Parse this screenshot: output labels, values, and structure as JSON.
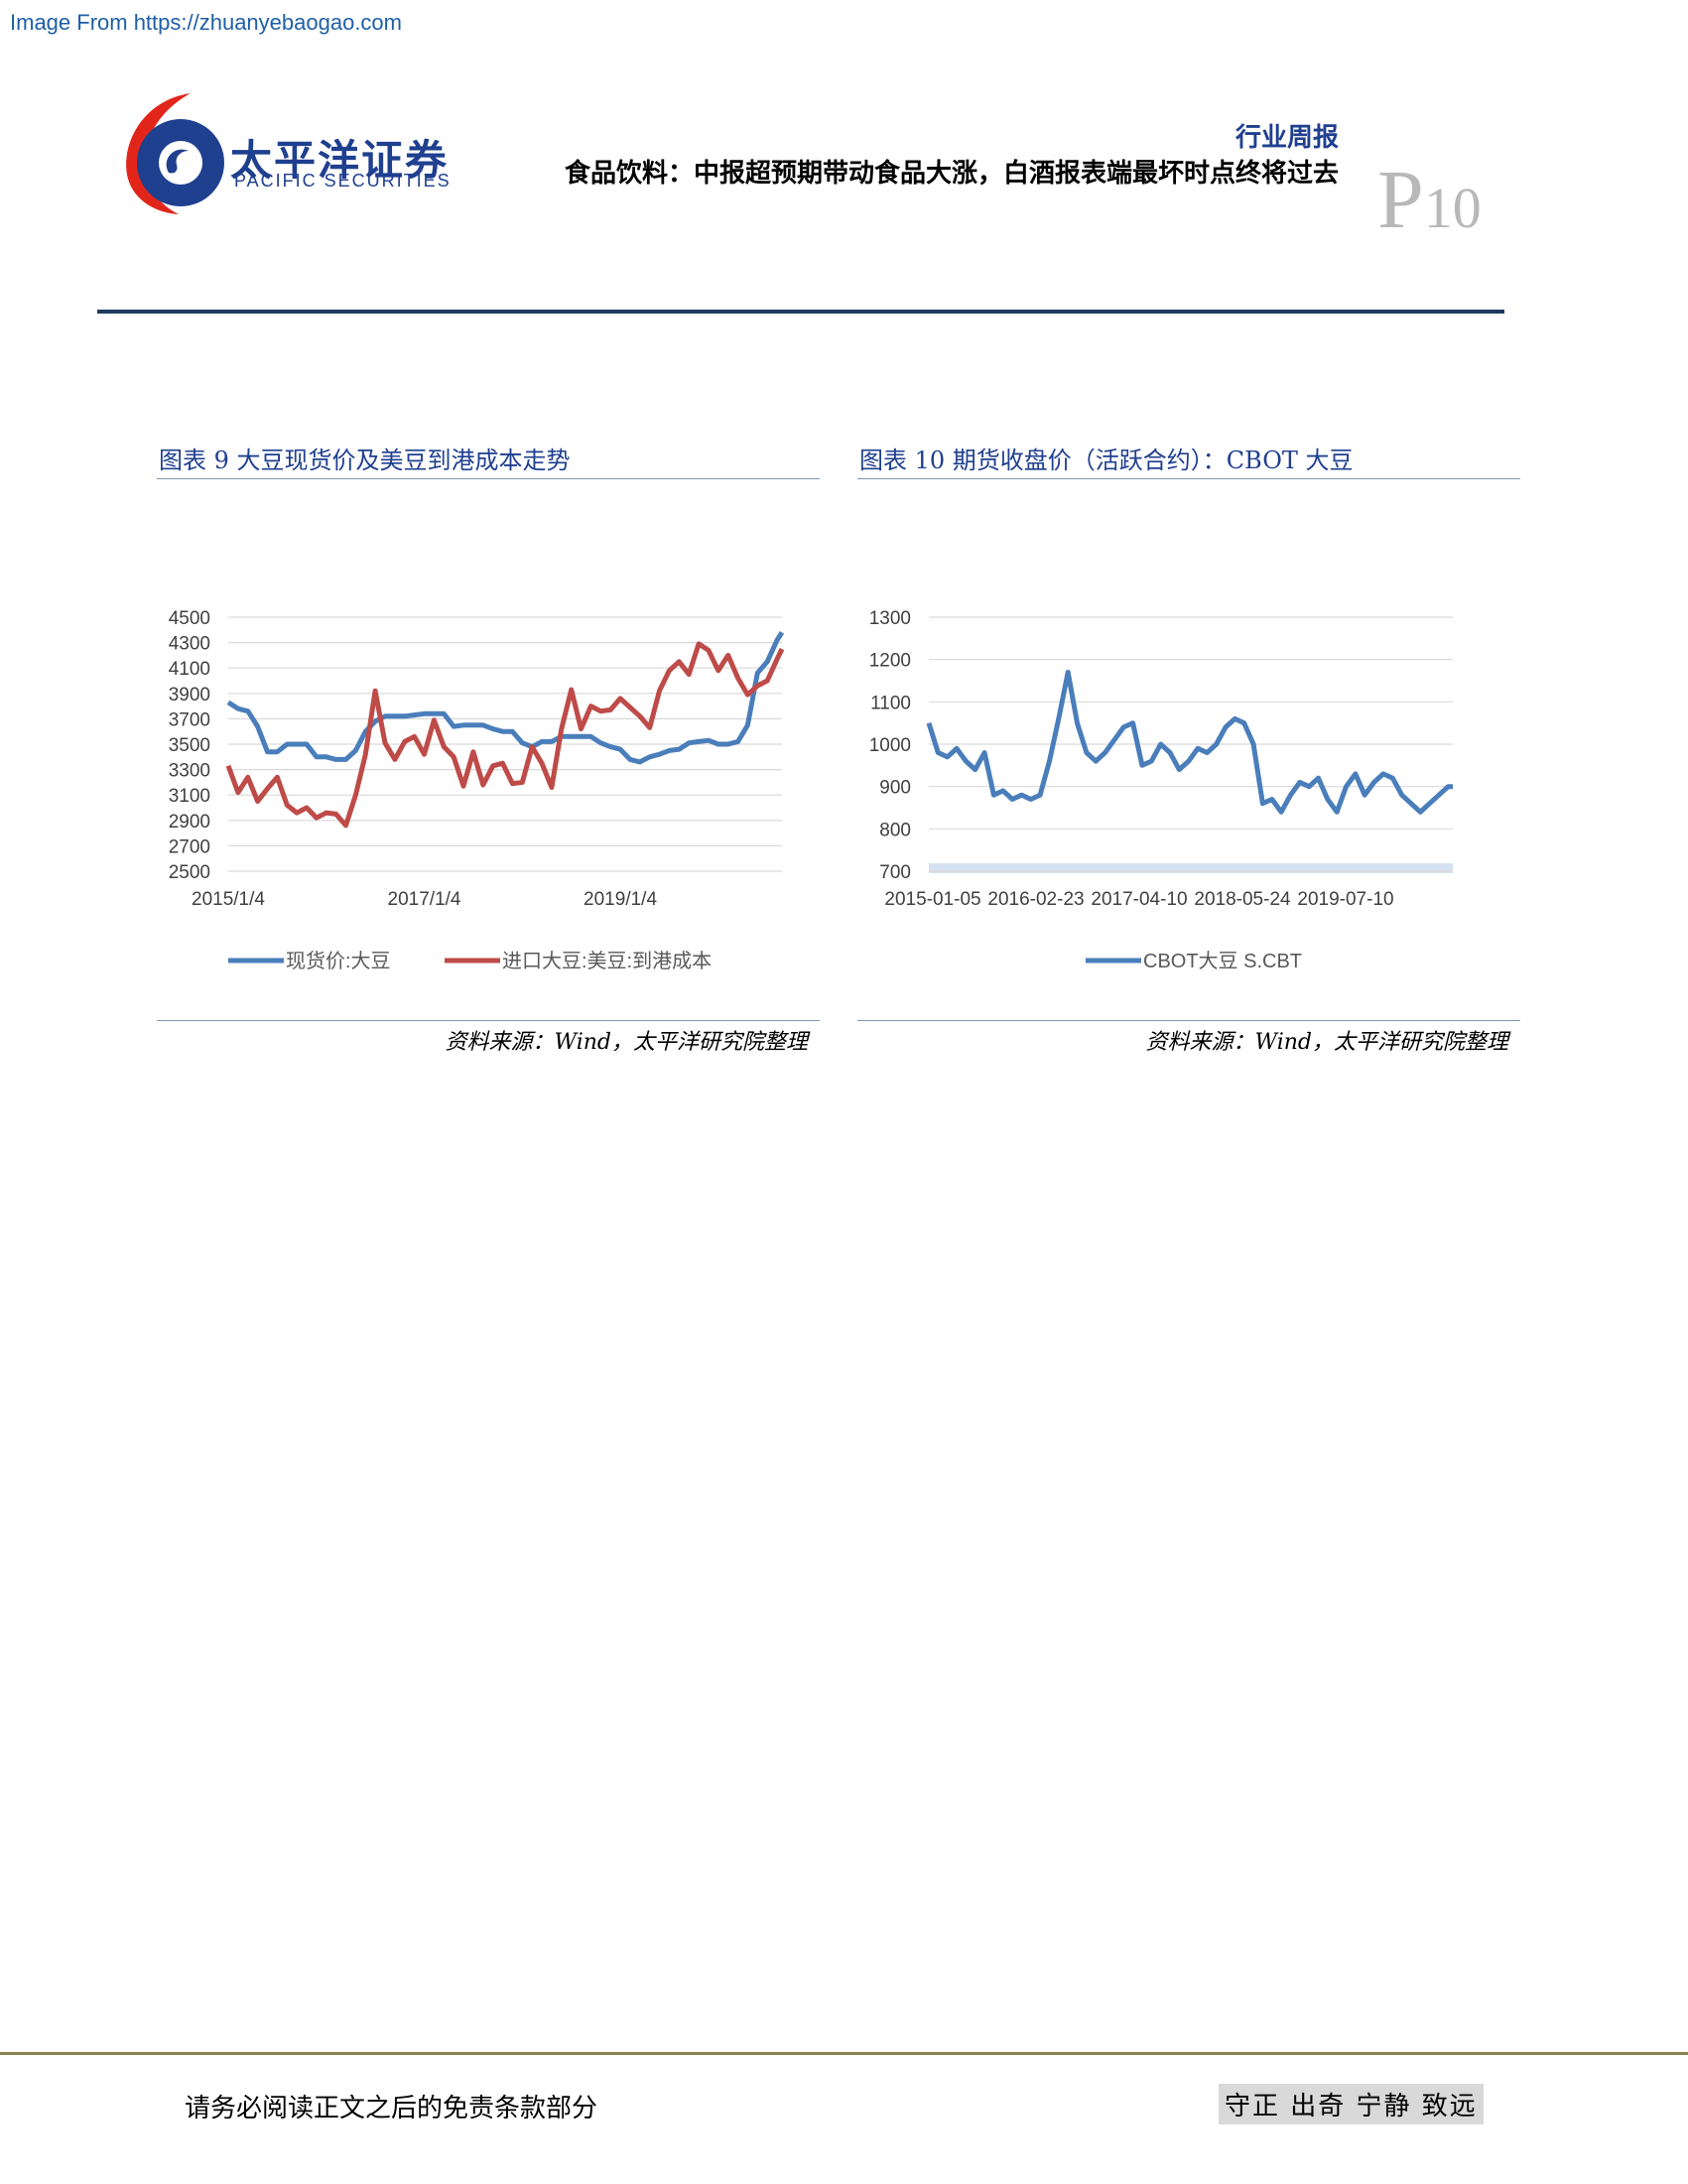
{
  "watermark": "Image From https://zhuanyebaogao.com",
  "header": {
    "brand_cn": "太平洋证券",
    "brand_en": "PACIFIC SECURITIES",
    "report_type": "行业周报",
    "title": "食品饮料：中报超预期带动食品大涨，白酒报表端最坏时点终将过去",
    "page_prefix": "P",
    "page_number": "10"
  },
  "colors": {
    "primary_series": "#4a7ebb",
    "secondary_series": "#be4b48",
    "accent": "#1f3f8f"
  },
  "figures": [
    {
      "title": "图表 9 大豆现货价及美豆到港成本走势",
      "source": "资料来源：Wind，太平洋研究院整理"
    },
    {
      "title": "图表 10 期货收盘价（活跃合约）：CBOT 大豆",
      "source": "资料来源：Wind，太平洋研究院整理"
    }
  ],
  "chart_data": [
    {
      "type": "line",
      "title": "",
      "xlabel": "",
      "ylabel": "",
      "x_tick_labels": [
        "2015/1/4",
        "2017/1/4",
        "2019/1/4"
      ],
      "y_ticks": [
        2500,
        2700,
        2900,
        3100,
        3300,
        3500,
        3700,
        3900,
        4100,
        4300,
        4500
      ],
      "ylim": [
        2500,
        4500
      ],
      "xlim": [
        2015.0,
        2020.65
      ],
      "grid": true,
      "legend": "bottom",
      "series": [
        {
          "name": "现货价:大豆",
          "color": "#4a7ebb",
          "x": [
            2015.0,
            2015.1,
            2015.2,
            2015.3,
            2015.4,
            2015.5,
            2015.6,
            2015.7,
            2015.8,
            2015.9,
            2016.0,
            2016.1,
            2016.2,
            2016.3,
            2016.4,
            2016.5,
            2016.6,
            2016.7,
            2016.8,
            2016.9,
            2017.0,
            2017.1,
            2017.2,
            2017.3,
            2017.4,
            2017.5,
            2017.6,
            2017.7,
            2017.8,
            2017.9,
            2018.0,
            2018.1,
            2018.2,
            2018.3,
            2018.4,
            2018.5,
            2018.6,
            2018.7,
            2018.8,
            2018.9,
            2019.0,
            2019.1,
            2019.2,
            2019.3,
            2019.4,
            2019.5,
            2019.6,
            2019.7,
            2019.8,
            2019.9,
            2020.0,
            2020.1,
            2020.2,
            2020.3,
            2020.4,
            2020.5,
            2020.6,
            2020.65
          ],
          "y": [
            3830,
            3780,
            3760,
            3640,
            3440,
            3440,
            3500,
            3500,
            3500,
            3400,
            3400,
            3380,
            3380,
            3450,
            3600,
            3680,
            3720,
            3720,
            3720,
            3730,
            3740,
            3740,
            3740,
            3640,
            3650,
            3650,
            3650,
            3620,
            3600,
            3600,
            3510,
            3480,
            3520,
            3520,
            3560,
            3560,
            3560,
            3560,
            3510,
            3480,
            3460,
            3380,
            3360,
            3400,
            3420,
            3450,
            3460,
            3510,
            3520,
            3530,
            3500,
            3500,
            3520,
            3650,
            4060,
            4150,
            4320,
            4380
          ]
        },
        {
          "name": "进口大豆:美豆:到港成本",
          "color": "#be4b48",
          "x": [
            2015.0,
            2015.1,
            2015.2,
            2015.3,
            2015.4,
            2015.5,
            2015.6,
            2015.7,
            2015.8,
            2015.9,
            2016.0,
            2016.1,
            2016.2,
            2016.3,
            2016.4,
            2016.5,
            2016.6,
            2016.7,
            2016.8,
            2016.9,
            2017.0,
            2017.1,
            2017.2,
            2017.3,
            2017.4,
            2017.5,
            2017.6,
            2017.7,
            2017.8,
            2017.9,
            2018.0,
            2018.1,
            2018.2,
            2018.3,
            2018.4,
            2018.5,
            2018.6,
            2018.7,
            2018.8,
            2018.9,
            2019.0,
            2019.1,
            2019.2,
            2019.3,
            2019.4,
            2019.5,
            2019.6,
            2019.7,
            2019.8,
            2019.9,
            2020.0,
            2020.1,
            2020.2,
            2020.3,
            2020.4,
            2020.5,
            2020.6,
            2020.65
          ],
          "y": [
            3330,
            3120,
            3240,
            3050,
            3150,
            3240,
            3020,
            2960,
            3000,
            2920,
            2960,
            2950,
            2860,
            3100,
            3420,
            3920,
            3510,
            3380,
            3520,
            3560,
            3420,
            3690,
            3480,
            3400,
            3170,
            3440,
            3180,
            3330,
            3350,
            3190,
            3200,
            3480,
            3350,
            3160,
            3620,
            3930,
            3620,
            3800,
            3760,
            3770,
            3860,
            3790,
            3720,
            3630,
            3920,
            4080,
            4150,
            4050,
            4290,
            4240,
            4080,
            4200,
            4020,
            3890,
            3960,
            4000,
            4170,
            4250
          ]
        }
      ]
    },
    {
      "type": "line",
      "title": "",
      "xlabel": "",
      "ylabel": "",
      "x_tick_labels": [
        "2015-01-05",
        "2016-02-23",
        "2017-04-10",
        "2018-05-24",
        "2019-07-10"
      ],
      "y_ticks": [
        700,
        800,
        900,
        1000,
        1100,
        1200,
        1300
      ],
      "ylim": [
        700,
        1300
      ],
      "xlim": [
        2015.0,
        2020.65
      ],
      "grid": true,
      "legend": "bottom",
      "series": [
        {
          "name": "CBOT大豆 S.CBT",
          "color": "#4a7ebb",
          "x": [
            2015.0,
            2015.1,
            2015.2,
            2015.3,
            2015.4,
            2015.5,
            2015.6,
            2015.7,
            2015.8,
            2015.9,
            2016.0,
            2016.1,
            2016.2,
            2016.3,
            2016.4,
            2016.5,
            2016.6,
            2016.7,
            2016.8,
            2016.9,
            2017.0,
            2017.1,
            2017.2,
            2017.3,
            2017.4,
            2017.5,
            2017.6,
            2017.7,
            2017.8,
            2017.9,
            2018.0,
            2018.1,
            2018.2,
            2018.3,
            2018.4,
            2018.5,
            2018.6,
            2018.7,
            2018.8,
            2018.9,
            2019.0,
            2019.1,
            2019.2,
            2019.3,
            2019.4,
            2019.5,
            2019.6,
            2019.7,
            2019.8,
            2019.9,
            2020.0,
            2020.1,
            2020.2,
            2020.3,
            2020.4,
            2020.5,
            2020.6,
            2020.65
          ],
          "y": [
            1050,
            980,
            970,
            990,
            960,
            940,
            980,
            880,
            890,
            870,
            880,
            870,
            880,
            960,
            1060,
            1170,
            1050,
            980,
            960,
            980,
            1010,
            1040,
            1050,
            950,
            960,
            1000,
            980,
            940,
            960,
            990,
            980,
            1000,
            1040,
            1060,
            1050,
            1000,
            860,
            870,
            840,
            880,
            910,
            900,
            920,
            870,
            840,
            900,
            930,
            880,
            910,
            930,
            920,
            880,
            860,
            840,
            860,
            880,
            900,
            900
          ]
        }
      ]
    }
  ]
}
